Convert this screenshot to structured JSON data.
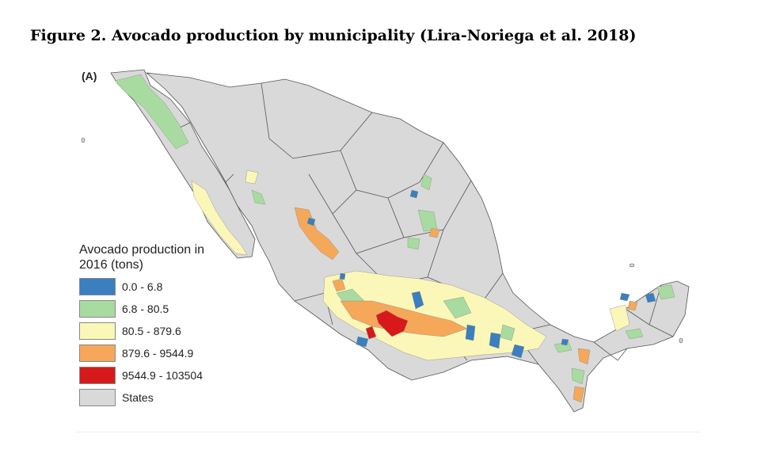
{
  "figure": {
    "title": "Figure 2. Avocado production by municipality (Lira-Noriega et al. 2018)",
    "panel_label": "(A)"
  },
  "legend": {
    "title": "Avocado production in 2016 (tons)",
    "items": [
      {
        "label": "0.0 - 6.8",
        "color": "#3a7fbf"
      },
      {
        "label": "6.8 - 80.5",
        "color": "#a8dba0"
      },
      {
        "label": "80.5 - 879.6",
        "color": "#fbf7b8"
      },
      {
        "label": "879.6 - 9544.9",
        "color": "#f5a85a"
      },
      {
        "label": "9544.9 - 103504",
        "color": "#d7191c"
      },
      {
        "label": "States",
        "color": "#d9d9d9"
      }
    ]
  },
  "map": {
    "land_color": "#d9d9d9",
    "border_color": "#555555",
    "region": "Mexico"
  }
}
